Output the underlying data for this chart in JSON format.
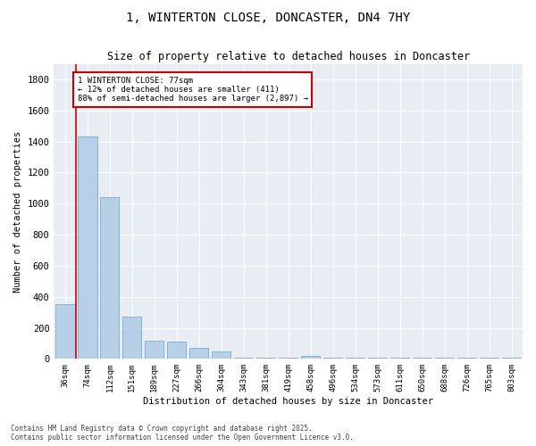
{
  "title": "1, WINTERTON CLOSE, DONCASTER, DN4 7HY",
  "subtitle": "Size of property relative to detached houses in Doncaster",
  "xlabel": "Distribution of detached houses by size in Doncaster",
  "ylabel": "Number of detached properties",
  "categories": [
    "36sqm",
    "74sqm",
    "112sqm",
    "151sqm",
    "189sqm",
    "227sqm",
    "266sqm",
    "304sqm",
    "343sqm",
    "381sqm",
    "419sqm",
    "458sqm",
    "496sqm",
    "534sqm",
    "573sqm",
    "611sqm",
    "650sqm",
    "688sqm",
    "726sqm",
    "765sqm",
    "803sqm"
  ],
  "values": [
    350,
    1430,
    1040,
    270,
    115,
    110,
    70,
    50,
    5,
    5,
    5,
    20,
    5,
    5,
    5,
    5,
    5,
    5,
    5,
    5,
    5
  ],
  "bar_color": "#b8cfe8",
  "bar_edge_color": "#7aaad0",
  "vline_color": "#cc0000",
  "annotation_line1": "1 WINTERTON CLOSE: 77sqm",
  "annotation_line2": "← 12% of detached houses are smaller (411)",
  "annotation_line3": "88% of semi-detached houses are larger (2,897) →",
  "annotation_box_edge_color": "#cc0000",
  "ylim": [
    0,
    1900
  ],
  "yticks": [
    0,
    200,
    400,
    600,
    800,
    1000,
    1200,
    1400,
    1600,
    1800
  ],
  "background_color": "#e8edf4",
  "grid_color": "white",
  "footer_line1": "Contains HM Land Registry data © Crown copyright and database right 2025.",
  "footer_line2": "Contains public sector information licensed under the Open Government Licence v3.0."
}
